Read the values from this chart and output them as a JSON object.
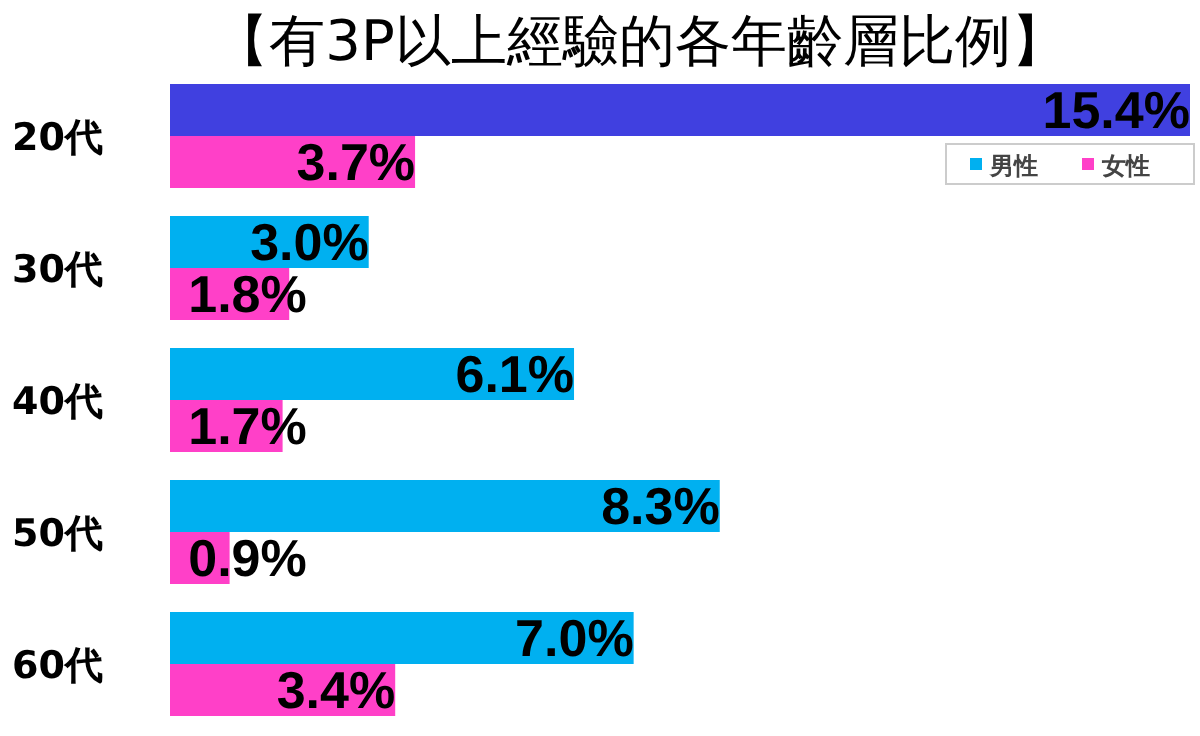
{
  "chart_data": {
    "type": "bar",
    "orientation": "horizontal",
    "title": "【有3P以上經驗的各年齡層比例】",
    "categories": [
      "20代",
      "30代",
      "40代",
      "50代",
      "60代"
    ],
    "legend": "top right",
    "series": [
      {
        "name": "男性",
        "color": "#00b0f0",
        "colors": [
          "#4040e0",
          "#00b0f0",
          "#00b0f0",
          "#00b0f0",
          "#00b0f0"
        ],
        "values": [
          15.4,
          3.0,
          6.1,
          8.3,
          7.0
        ],
        "value_labels": [
          "15.4%",
          "3.0%",
          "6.1%",
          "8.3%",
          "7.0%"
        ]
      },
      {
        "name": "女性",
        "color": "#ff40c8",
        "values": [
          3.7,
          1.8,
          1.7,
          0.9,
          3.4
        ],
        "value_labels": [
          "3.7%",
          "1.8%",
          "1.7%",
          "0.9%",
          "3.4%"
        ]
      }
    ]
  }
}
